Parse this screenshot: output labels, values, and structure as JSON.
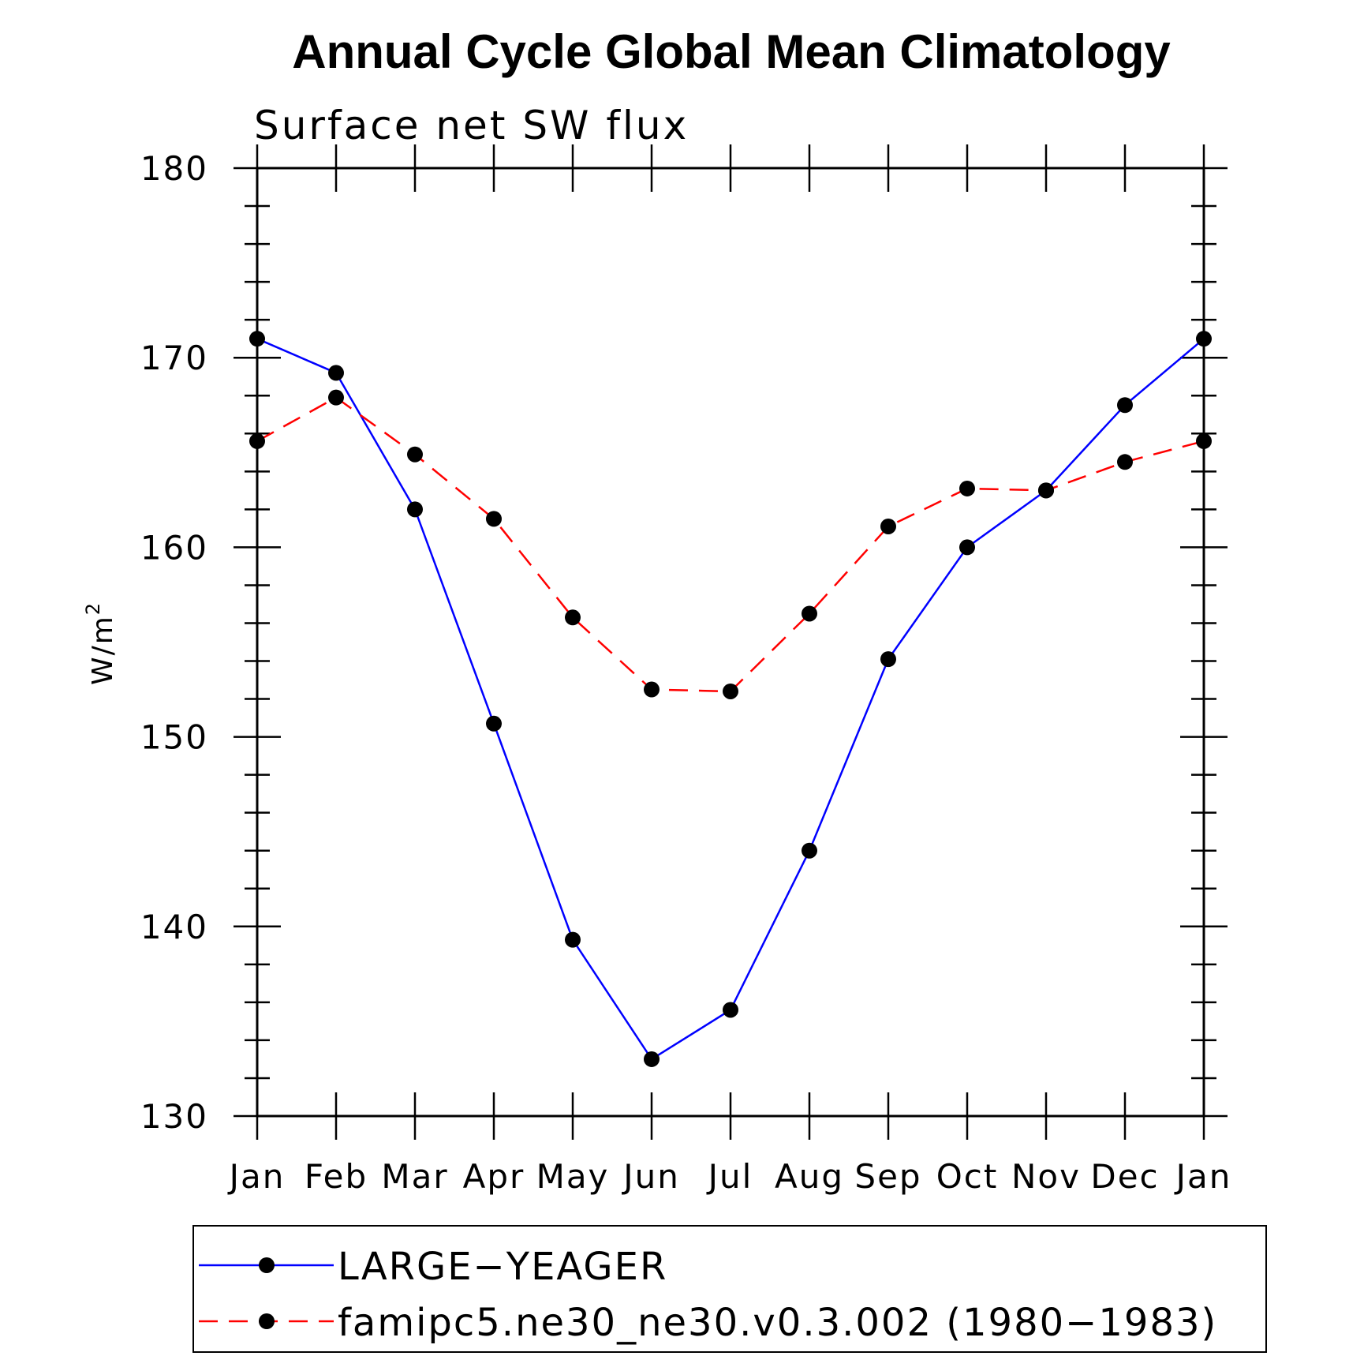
{
  "chart_data": {
    "type": "line",
    "title": "Annual Cycle Global Mean Climatology",
    "subtitle": "Surface net SW flux",
    "ylabel": "W/m",
    "ylabel_superscript": "2",
    "ylim": [
      130,
      180
    ],
    "yticks": [
      130,
      140,
      150,
      160,
      170,
      180
    ],
    "categories": [
      "Jan",
      "Feb",
      "Mar",
      "Apr",
      "May",
      "Jun",
      "Jul",
      "Aug",
      "Sep",
      "Oct",
      "Nov",
      "Dec",
      "Jan"
    ],
    "series": [
      {
        "name": "LARGE−YEAGER",
        "color": "#0000ff",
        "dash": "solid",
        "values": [
          171.0,
          169.2,
          162.0,
          150.7,
          139.3,
          133.0,
          135.6,
          144.0,
          154.1,
          160.0,
          163.0,
          167.5,
          171.0
        ]
      },
      {
        "name": "famipc5.ne30_ne30.v0.3.002 (1980−1983)",
        "color": "#ff0000",
        "dash": "dashed",
        "values": [
          165.6,
          167.9,
          164.9,
          161.5,
          156.3,
          152.5,
          152.4,
          156.5,
          161.1,
          163.1,
          163.0,
          164.5,
          165.6
        ]
      }
    ],
    "marker_color": "#000000",
    "legend_position": "bottom"
  }
}
